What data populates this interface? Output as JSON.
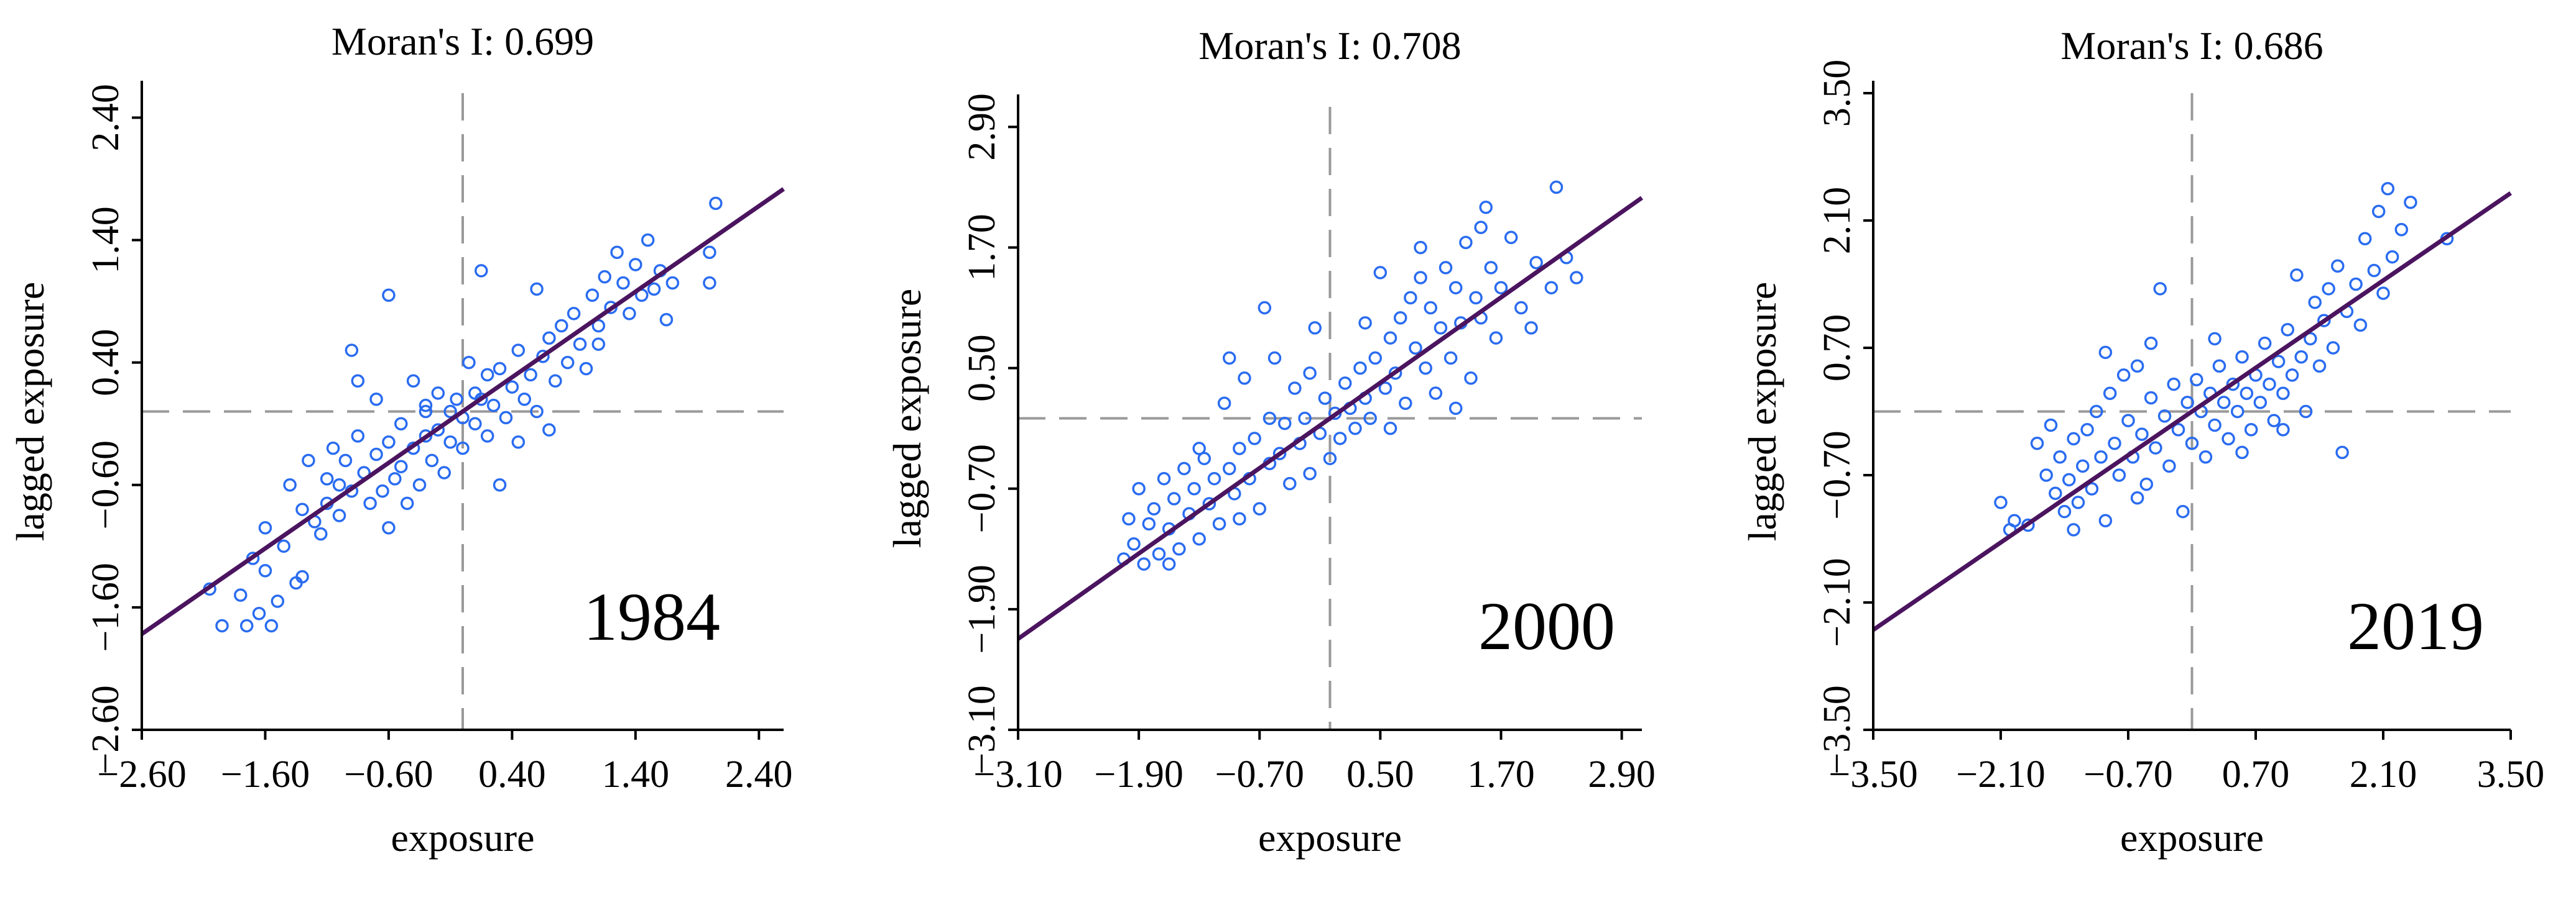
{
  "colors": {
    "points": "#2a6cf0",
    "fit_line": "#4b145f",
    "ref_lines": "#999999",
    "axes": "#000000"
  },
  "chart_data": [
    {
      "type": "scatter",
      "title": "Moran's I: 0.699",
      "annotation": "1984",
      "xlabel": "exposure",
      "ylabel": "lagged exposure",
      "xlim": [
        -2.6,
        2.6
      ],
      "ylim": [
        -2.6,
        2.6
      ],
      "xticks": [
        "−2.60",
        "−1.60",
        "−0.60",
        "0.40",
        "1.40",
        "2.40"
      ],
      "yticks": [
        "−2.60",
        "−1.60",
        "−0.60",
        "0.40",
        "1.40",
        "2.40"
      ],
      "tick_values": [
        -2.6,
        -1.6,
        -0.6,
        0.4,
        1.4,
        2.4
      ],
      "ref_x": 0.0,
      "ref_y": 0.0,
      "fit_slope": 0.699,
      "points": [
        [
          -2.05,
          -1.45
        ],
        [
          -1.95,
          -1.75
        ],
        [
          -1.8,
          -1.5
        ],
        [
          -1.75,
          -1.75
        ],
        [
          -1.7,
          -1.2
        ],
        [
          -1.65,
          -1.65
        ],
        [
          -1.6,
          -0.95
        ],
        [
          -1.6,
          -1.3
        ],
        [
          -1.55,
          -1.75
        ],
        [
          -1.5,
          -1.55
        ],
        [
          -1.45,
          -1.1
        ],
        [
          -1.4,
          -0.6
        ],
        [
          -1.35,
          -1.4
        ],
        [
          -1.3,
          -0.8
        ],
        [
          -1.3,
          -1.35
        ],
        [
          -1.25,
          -0.4
        ],
        [
          -1.2,
          -0.9
        ],
        [
          -1.15,
          -1.0
        ],
        [
          -1.1,
          -0.55
        ],
        [
          -1.1,
          -0.75
        ],
        [
          -1.05,
          -0.3
        ],
        [
          -1.0,
          -0.6
        ],
        [
          -1.0,
          -0.85
        ],
        [
          -0.95,
          -0.4
        ],
        [
          -0.9,
          0.5
        ],
        [
          -0.9,
          -0.65
        ],
        [
          -0.85,
          0.25
        ],
        [
          -0.85,
          -0.2
        ],
        [
          -0.8,
          -0.5
        ],
        [
          -0.75,
          -0.75
        ],
        [
          -0.7,
          -0.35
        ],
        [
          -0.7,
          0.1
        ],
        [
          -0.65,
          -0.65
        ],
        [
          -0.6,
          -0.25
        ],
        [
          -0.6,
          -0.95
        ],
        [
          -0.55,
          -0.55
        ],
        [
          -0.5,
          -0.1
        ],
        [
          -0.5,
          -0.45
        ],
        [
          -0.45,
          -0.75
        ],
        [
          -0.4,
          -0.3
        ],
        [
          -0.4,
          0.25
        ],
        [
          -0.35,
          -0.6
        ],
        [
          -0.3,
          -0.2
        ],
        [
          -0.3,
          0.0
        ],
        [
          -0.25,
          -0.4
        ],
        [
          -0.2,
          -0.15
        ],
        [
          -0.2,
          0.15
        ],
        [
          -0.15,
          -0.5
        ],
        [
          -0.1,
          0.0
        ],
        [
          -0.1,
          -0.25
        ],
        [
          -0.05,
          0.1
        ],
        [
          0.0,
          -0.05
        ],
        [
          0.0,
          -0.3
        ],
        [
          0.05,
          0.4
        ],
        [
          0.1,
          0.15
        ],
        [
          0.1,
          -0.1
        ],
        [
          0.15,
          0.1
        ],
        [
          0.2,
          -0.2
        ],
        [
          0.2,
          0.3
        ],
        [
          0.25,
          0.05
        ],
        [
          0.3,
          0.35
        ],
        [
          0.35,
          -0.05
        ],
        [
          0.4,
          0.2
        ],
        [
          0.45,
          -0.25
        ],
        [
          0.45,
          0.5
        ],
        [
          0.5,
          0.1
        ],
        [
          0.55,
          0.3
        ],
        [
          0.6,
          0.0
        ],
        [
          0.65,
          0.45
        ],
        [
          0.7,
          0.6
        ],
        [
          0.75,
          0.25
        ],
        [
          0.8,
          0.7
        ],
        [
          0.85,
          0.4
        ],
        [
          0.9,
          0.8
        ],
        [
          0.95,
          0.55
        ],
        [
          1.0,
          0.35
        ],
        [
          1.05,
          0.95
        ],
        [
          1.1,
          0.7
        ],
        [
          1.15,
          1.1
        ],
        [
          1.2,
          0.85
        ],
        [
          1.25,
          1.3
        ],
        [
          1.3,
          1.05
        ],
        [
          1.35,
          0.8
        ],
        [
          1.4,
          1.2
        ],
        [
          1.45,
          0.95
        ],
        [
          1.5,
          1.4
        ],
        [
          1.55,
          1.0
        ],
        [
          1.6,
          1.15
        ],
        [
          1.65,
          0.75
        ],
        [
          1.7,
          1.05
        ],
        [
          2.0,
          1.3
        ],
        [
          2.0,
          1.05
        ],
        [
          2.05,
          1.7
        ],
        [
          1.1,
          0.55
        ],
        [
          0.6,
          1.0
        ],
        [
          -0.3,
          0.05
        ],
        [
          0.15,
          1.15
        ],
        [
          -0.6,
          0.95
        ],
        [
          0.3,
          -0.6
        ],
        [
          0.7,
          -0.15
        ]
      ]
    },
    {
      "type": "scatter",
      "title": "Moran's I: 0.708",
      "annotation": "2000",
      "xlabel": "exposure",
      "ylabel": "lagged exposure",
      "xlim": [
        -3.1,
        3.1
      ],
      "ylim": [
        -3.1,
        3.1
      ],
      "xticks": [
        "−3.10",
        "−1.90",
        "−0.70",
        "0.50",
        "1.70",
        "2.90"
      ],
      "yticks": [
        "−3.10",
        "−1.90",
        "−0.70",
        "0.50",
        "1.70",
        "2.90"
      ],
      "tick_values": [
        -3.1,
        -1.9,
        -0.7,
        0.5,
        1.7,
        2.9
      ],
      "ref_x": 0.0,
      "ref_y": 0.0,
      "fit_slope": 0.708,
      "points": [
        [
          -2.05,
          -1.4
        ],
        [
          -2.0,
          -1.0
        ],
        [
          -1.95,
          -1.25
        ],
        [
          -1.9,
          -0.7
        ],
        [
          -1.85,
          -1.45
        ],
        [
          -1.8,
          -1.05
        ],
        [
          -1.75,
          -0.9
        ],
        [
          -1.7,
          -1.35
        ],
        [
          -1.65,
          -0.6
        ],
        [
          -1.6,
          -1.1
        ],
        [
          -1.55,
          -0.8
        ],
        [
          -1.5,
          -1.3
        ],
        [
          -1.45,
          -0.5
        ],
        [
          -1.4,
          -0.95
        ],
        [
          -1.35,
          -0.7
        ],
        [
          -1.3,
          -1.2
        ],
        [
          -1.25,
          -0.4
        ],
        [
          -1.2,
          -0.85
        ],
        [
          -1.15,
          -0.6
        ],
        [
          -1.1,
          -1.05
        ],
        [
          -1.05,
          0.15
        ],
        [
          -1.0,
          -0.5
        ],
        [
          -0.95,
          -0.75
        ],
        [
          -0.9,
          -0.3
        ],
        [
          -0.85,
          0.4
        ],
        [
          -0.8,
          -0.6
        ],
        [
          -0.75,
          -0.2
        ],
        [
          -0.7,
          -0.9
        ],
        [
          -0.65,
          1.1
        ],
        [
          -0.6,
          -0.45
        ],
        [
          -0.55,
          0.6
        ],
        [
          -0.5,
          -0.35
        ],
        [
          -0.45,
          -0.05
        ],
        [
          -0.4,
          -0.65
        ],
        [
          -0.35,
          0.3
        ],
        [
          -0.3,
          -0.25
        ],
        [
          -0.25,
          0.0
        ],
        [
          -0.2,
          -0.55
        ],
        [
          -0.15,
          0.9
        ],
        [
          -0.1,
          -0.15
        ],
        [
          -0.05,
          0.2
        ],
        [
          0.0,
          -0.4
        ],
        [
          0.05,
          0.05
        ],
        [
          0.1,
          -0.2
        ],
        [
          0.15,
          0.35
        ],
        [
          0.2,
          0.1
        ],
        [
          0.25,
          -0.1
        ],
        [
          0.3,
          0.5
        ],
        [
          0.35,
          0.2
        ],
        [
          0.4,
          0.0
        ],
        [
          0.45,
          0.6
        ],
        [
          0.5,
          1.45
        ],
        [
          0.55,
          0.3
        ],
        [
          0.6,
          0.8
        ],
        [
          0.65,
          0.45
        ],
        [
          0.7,
          1.0
        ],
        [
          0.75,
          0.15
        ],
        [
          0.8,
          1.2
        ],
        [
          0.85,
          0.7
        ],
        [
          0.9,
          1.4
        ],
        [
          0.95,
          0.5
        ],
        [
          1.0,
          1.1
        ],
        [
          1.05,
          0.25
        ],
        [
          1.1,
          0.9
        ],
        [
          1.15,
          1.5
        ],
        [
          1.2,
          0.6
        ],
        [
          1.25,
          1.3
        ],
        [
          1.3,
          0.95
        ],
        [
          1.35,
          1.75
        ],
        [
          1.4,
          0.4
        ],
        [
          1.45,
          1.2
        ],
        [
          1.5,
          1.0
        ],
        [
          1.55,
          2.1
        ],
        [
          1.6,
          1.5
        ],
        [
          1.65,
          0.8
        ],
        [
          1.7,
          1.3
        ],
        [
          1.8,
          1.8
        ],
        [
          1.9,
          1.1
        ],
        [
          2.0,
          0.9
        ],
        [
          2.05,
          1.55
        ],
        [
          2.2,
          1.3
        ],
        [
          2.25,
          2.3
        ],
        [
          2.35,
          1.6
        ],
        [
          2.45,
          1.4
        ],
        [
          -1.3,
          -0.3
        ],
        [
          -1.0,
          0.6
        ],
        [
          -0.6,
          0.0
        ],
        [
          -0.2,
          0.45
        ],
        [
          0.6,
          -0.1
        ],
        [
          1.25,
          0.1
        ],
        [
          0.35,
          0.95
        ],
        [
          -0.9,
          -1.0
        ],
        [
          -1.6,
          -1.45
        ],
        [
          0.9,
          1.7
        ],
        [
          1.5,
          1.9
        ]
      ]
    },
    {
      "type": "scatter",
      "title": "Moran's I: 0.686",
      "annotation": "2019",
      "xlabel": "exposure",
      "ylabel": "lagged exposure",
      "xlim": [
        -3.5,
        3.5
      ],
      "ylim": [
        -3.5,
        3.5
      ],
      "xticks": [
        "−3.50",
        "−2.10",
        "−0.70",
        "0.70",
        "2.10",
        "3.50"
      ],
      "yticks": [
        "−3.50",
        "−2.10",
        "−0.70",
        "0.70",
        "2.10",
        "3.50"
      ],
      "tick_values": [
        -3.5,
        -2.1,
        -0.7,
        0.7,
        2.1,
        3.5
      ],
      "ref_x": 0.0,
      "ref_y": 0.0,
      "fit_slope": 0.686,
      "points": [
        [
          -2.1,
          -1.0
        ],
        [
          -2.0,
          -1.3
        ],
        [
          -1.95,
          -1.2
        ],
        [
          -1.8,
          -1.25
        ],
        [
          -1.7,
          -0.35
        ],
        [
          -1.6,
          -0.7
        ],
        [
          -1.5,
          -0.9
        ],
        [
          -1.45,
          -0.5
        ],
        [
          -1.4,
          -1.1
        ],
        [
          -1.35,
          -0.75
        ],
        [
          -1.3,
          -0.3
        ],
        [
          -1.25,
          -1.0
        ],
        [
          -1.2,
          -0.6
        ],
        [
          -1.15,
          -0.2
        ],
        [
          -1.1,
          -0.85
        ],
        [
          -1.05,
          0.0
        ],
        [
          -1.0,
          -0.5
        ],
        [
          -0.95,
          -1.2
        ],
        [
          -0.9,
          0.2
        ],
        [
          -0.85,
          -0.35
        ],
        [
          -0.8,
          -0.7
        ],
        [
          -0.75,
          0.4
        ],
        [
          -0.7,
          -0.1
        ],
        [
          -0.65,
          -0.5
        ],
        [
          -0.6,
          0.5
        ],
        [
          -0.55,
          -0.25
        ],
        [
          -0.5,
          -0.8
        ],
        [
          -0.45,
          0.15
        ],
        [
          -0.4,
          -0.4
        ],
        [
          -0.35,
          1.35
        ],
        [
          -0.3,
          -0.05
        ],
        [
          -0.25,
          -0.6
        ],
        [
          -0.2,
          0.3
        ],
        [
          -0.15,
          -0.2
        ],
        [
          -0.1,
          -1.1
        ],
        [
          -0.05,
          0.1
        ],
        [
          0.0,
          -0.35
        ],
        [
          0.05,
          0.35
        ],
        [
          0.1,
          0.0
        ],
        [
          0.15,
          -0.5
        ],
        [
          0.2,
          0.2
        ],
        [
          0.25,
          -0.15
        ],
        [
          0.3,
          0.5
        ],
        [
          0.35,
          0.1
        ],
        [
          0.4,
          -0.3
        ],
        [
          0.45,
          0.3
        ],
        [
          0.5,
          0.0
        ],
        [
          0.55,
          0.6
        ],
        [
          0.6,
          0.2
        ],
        [
          0.65,
          -0.2
        ],
        [
          0.7,
          0.4
        ],
        [
          0.75,
          0.1
        ],
        [
          0.8,
          0.75
        ],
        [
          0.85,
          0.3
        ],
        [
          0.9,
          -0.1
        ],
        [
          0.95,
          0.55
        ],
        [
          1.0,
          0.2
        ],
        [
          1.05,
          0.9
        ],
        [
          1.1,
          0.4
        ],
        [
          1.15,
          1.5
        ],
        [
          1.2,
          0.6
        ],
        [
          1.25,
          0.0
        ],
        [
          1.3,
          0.8
        ],
        [
          1.35,
          1.2
        ],
        [
          1.4,
          0.5
        ],
        [
          1.45,
          1.0
        ],
        [
          1.5,
          1.35
        ],
        [
          1.55,
          0.7
        ],
        [
          1.6,
          1.6
        ],
        [
          1.65,
          -0.45
        ],
        [
          1.7,
          1.1
        ],
        [
          1.8,
          1.4
        ],
        [
          1.9,
          1.9
        ],
        [
          2.0,
          1.55
        ],
        [
          2.05,
          2.2
        ],
        [
          2.1,
          1.3
        ],
        [
          2.2,
          1.7
        ],
        [
          2.3,
          2.0
        ],
        [
          2.4,
          2.3
        ],
        [
          2.8,
          1.9
        ],
        [
          -1.55,
          -0.15
        ],
        [
          -0.95,
          0.65
        ],
        [
          -0.45,
          0.75
        ],
        [
          0.25,
          0.8
        ],
        [
          1.0,
          -0.2
        ],
        [
          -1.3,
          -1.3
        ],
        [
          -0.6,
          -0.95
        ],
        [
          0.55,
          -0.45
        ],
        [
          1.85,
          0.95
        ],
        [
          2.15,
          2.45
        ]
      ]
    }
  ]
}
